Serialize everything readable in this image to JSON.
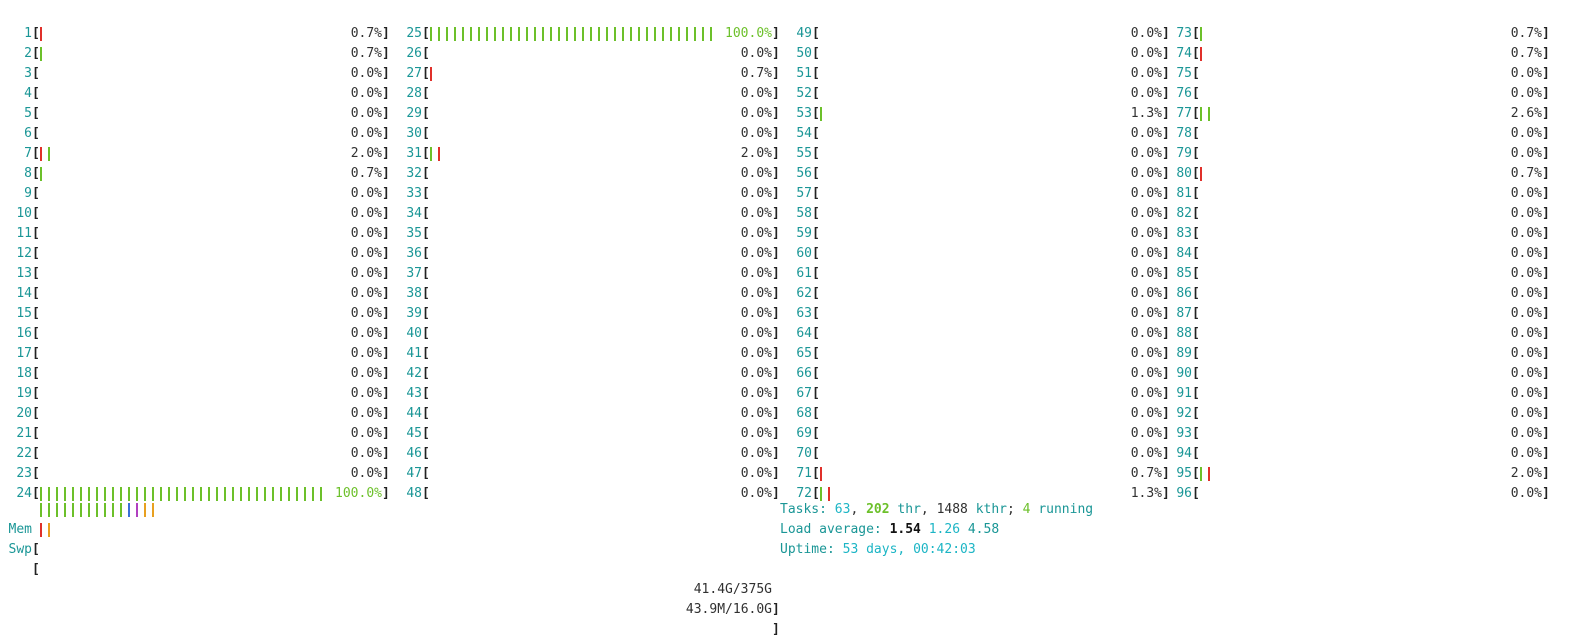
{
  "cpus": [
    {
      "id": "1",
      "pct": "0.7%",
      "bars": [
        "red"
      ]
    },
    {
      "id": "2",
      "pct": "0.7%",
      "bars": [
        "grn"
      ]
    },
    {
      "id": "3",
      "pct": "0.0%",
      "bars": []
    },
    {
      "id": "4",
      "pct": "0.0%",
      "bars": []
    },
    {
      "id": "5",
      "pct": "0.0%",
      "bars": []
    },
    {
      "id": "6",
      "pct": "0.0%",
      "bars": []
    },
    {
      "id": "7",
      "pct": "2.0%",
      "bars": [
        "red",
        "grn"
      ]
    },
    {
      "id": "8",
      "pct": "0.7%",
      "bars": [
        "grn"
      ]
    },
    {
      "id": "9",
      "pct": "0.0%",
      "bars": []
    },
    {
      "id": "10",
      "pct": "0.0%",
      "bars": []
    },
    {
      "id": "11",
      "pct": "0.0%",
      "bars": []
    },
    {
      "id": "12",
      "pct": "0.0%",
      "bars": []
    },
    {
      "id": "13",
      "pct": "0.0%",
      "bars": []
    },
    {
      "id": "14",
      "pct": "0.0%",
      "bars": []
    },
    {
      "id": "15",
      "pct": "0.0%",
      "bars": []
    },
    {
      "id": "16",
      "pct": "0.0%",
      "bars": []
    },
    {
      "id": "17",
      "pct": "0.0%",
      "bars": []
    },
    {
      "id": "18",
      "pct": "0.0%",
      "bars": []
    },
    {
      "id": "19",
      "pct": "0.0%",
      "bars": []
    },
    {
      "id": "20",
      "pct": "0.0%",
      "bars": []
    },
    {
      "id": "21",
      "pct": "0.0%",
      "bars": []
    },
    {
      "id": "22",
      "pct": "0.0%",
      "bars": []
    },
    {
      "id": "23",
      "pct": "0.0%",
      "bars": []
    },
    {
      "id": "24",
      "pct": "100.0%",
      "bars": "full"
    },
    {
      "id": "25",
      "pct": "100.0%",
      "bars": "full"
    },
    {
      "id": "26",
      "pct": "0.0%",
      "bars": []
    },
    {
      "id": "27",
      "pct": "0.7%",
      "bars": [
        "red"
      ]
    },
    {
      "id": "28",
      "pct": "0.0%",
      "bars": []
    },
    {
      "id": "29",
      "pct": "0.0%",
      "bars": []
    },
    {
      "id": "30",
      "pct": "0.0%",
      "bars": []
    },
    {
      "id": "31",
      "pct": "2.0%",
      "bars": [
        "grn",
        "red"
      ]
    },
    {
      "id": "32",
      "pct": "0.0%",
      "bars": []
    },
    {
      "id": "33",
      "pct": "0.0%",
      "bars": []
    },
    {
      "id": "34",
      "pct": "0.0%",
      "bars": []
    },
    {
      "id": "35",
      "pct": "0.0%",
      "bars": []
    },
    {
      "id": "36",
      "pct": "0.0%",
      "bars": []
    },
    {
      "id": "37",
      "pct": "0.0%",
      "bars": []
    },
    {
      "id": "38",
      "pct": "0.0%",
      "bars": []
    },
    {
      "id": "39",
      "pct": "0.0%",
      "bars": []
    },
    {
      "id": "40",
      "pct": "0.0%",
      "bars": []
    },
    {
      "id": "41",
      "pct": "0.0%",
      "bars": []
    },
    {
      "id": "42",
      "pct": "0.0%",
      "bars": []
    },
    {
      "id": "43",
      "pct": "0.0%",
      "bars": []
    },
    {
      "id": "44",
      "pct": "0.0%",
      "bars": []
    },
    {
      "id": "45",
      "pct": "0.0%",
      "bars": []
    },
    {
      "id": "46",
      "pct": "0.0%",
      "bars": []
    },
    {
      "id": "47",
      "pct": "0.0%",
      "bars": []
    },
    {
      "id": "48",
      "pct": "0.0%",
      "bars": []
    },
    {
      "id": "49",
      "pct": "0.0%",
      "bars": []
    },
    {
      "id": "50",
      "pct": "0.0%",
      "bars": []
    },
    {
      "id": "51",
      "pct": "0.0%",
      "bars": []
    },
    {
      "id": "52",
      "pct": "0.0%",
      "bars": []
    },
    {
      "id": "53",
      "pct": "1.3%",
      "bars": [
        "grn"
      ]
    },
    {
      "id": "54",
      "pct": "0.0%",
      "bars": []
    },
    {
      "id": "55",
      "pct": "0.0%",
      "bars": []
    },
    {
      "id": "56",
      "pct": "0.0%",
      "bars": []
    },
    {
      "id": "57",
      "pct": "0.0%",
      "bars": []
    },
    {
      "id": "58",
      "pct": "0.0%",
      "bars": []
    },
    {
      "id": "59",
      "pct": "0.0%",
      "bars": []
    },
    {
      "id": "60",
      "pct": "0.0%",
      "bars": []
    },
    {
      "id": "61",
      "pct": "0.0%",
      "bars": []
    },
    {
      "id": "62",
      "pct": "0.0%",
      "bars": []
    },
    {
      "id": "63",
      "pct": "0.0%",
      "bars": []
    },
    {
      "id": "64",
      "pct": "0.0%",
      "bars": []
    },
    {
      "id": "65",
      "pct": "0.0%",
      "bars": []
    },
    {
      "id": "66",
      "pct": "0.0%",
      "bars": []
    },
    {
      "id": "67",
      "pct": "0.0%",
      "bars": []
    },
    {
      "id": "68",
      "pct": "0.0%",
      "bars": []
    },
    {
      "id": "69",
      "pct": "0.0%",
      "bars": []
    },
    {
      "id": "70",
      "pct": "0.0%",
      "bars": []
    },
    {
      "id": "71",
      "pct": "0.7%",
      "bars": [
        "red"
      ]
    },
    {
      "id": "72",
      "pct": "1.3%",
      "bars": [
        "grn",
        "red"
      ]
    },
    {
      "id": "73",
      "pct": "0.7%",
      "bars": [
        "grn"
      ]
    },
    {
      "id": "74",
      "pct": "0.7%",
      "bars": [
        "red"
      ]
    },
    {
      "id": "75",
      "pct": "0.0%",
      "bars": []
    },
    {
      "id": "76",
      "pct": "0.0%",
      "bars": []
    },
    {
      "id": "77",
      "pct": "2.6%",
      "bars": [
        "grn",
        "grn"
      ]
    },
    {
      "id": "78",
      "pct": "0.0%",
      "bars": []
    },
    {
      "id": "79",
      "pct": "0.0%",
      "bars": []
    },
    {
      "id": "80",
      "pct": "0.7%",
      "bars": [
        "red"
      ]
    },
    {
      "id": "81",
      "pct": "0.0%",
      "bars": []
    },
    {
      "id": "82",
      "pct": "0.0%",
      "bars": []
    },
    {
      "id": "83",
      "pct": "0.0%",
      "bars": []
    },
    {
      "id": "84",
      "pct": "0.0%",
      "bars": []
    },
    {
      "id": "85",
      "pct": "0.0%",
      "bars": []
    },
    {
      "id": "86",
      "pct": "0.0%",
      "bars": []
    },
    {
      "id": "87",
      "pct": "0.0%",
      "bars": []
    },
    {
      "id": "88",
      "pct": "0.0%",
      "bars": []
    },
    {
      "id": "89",
      "pct": "0.0%",
      "bars": []
    },
    {
      "id": "90",
      "pct": "0.0%",
      "bars": []
    },
    {
      "id": "91",
      "pct": "0.0%",
      "bars": []
    },
    {
      "id": "92",
      "pct": "0.0%",
      "bars": []
    },
    {
      "id": "93",
      "pct": "0.0%",
      "bars": []
    },
    {
      "id": "94",
      "pct": "0.0%",
      "bars": []
    },
    {
      "id": "95",
      "pct": "2.0%",
      "bars": [
        "grn",
        "red"
      ]
    },
    {
      "id": "96",
      "pct": "0.0%",
      "bars": []
    }
  ],
  "mem": {
    "label": "Mem",
    "value": "41.4G/375G",
    "bars": [
      "grn",
      "grn",
      "grn",
      "grn",
      "grn",
      "grn",
      "grn",
      "grn",
      "grn",
      "grn",
      "grn",
      "blu",
      "mag",
      "org",
      "org"
    ]
  },
  "swp": {
    "label": "Swp",
    "value": "43.9M/16.0G",
    "bars": [
      "red",
      "org"
    ]
  },
  "tasks": {
    "label": "Tasks: ",
    "count": "63",
    "sep1": ", ",
    "thr": "202",
    "thr_label": " thr",
    "sep2": ", ",
    "kthr": "1488",
    "kthr_label": " kthr",
    "sep3": "; ",
    "running": "4",
    "running_label": " running"
  },
  "load": {
    "label": "Load average: ",
    "l1": "1.54",
    "l5": "1.26",
    "l15": "4.58"
  },
  "uptime": {
    "label": "Uptime: ",
    "value": "53 days, 00:42:03"
  },
  "colors": {
    "green": "#6cc02a",
    "red": "#e0302a",
    "blue": "#3a6fd8",
    "orange": "#e8a020",
    "magenta": "#b040c0",
    "teal": "#1a9696",
    "cyan": "#1cb5c5"
  }
}
